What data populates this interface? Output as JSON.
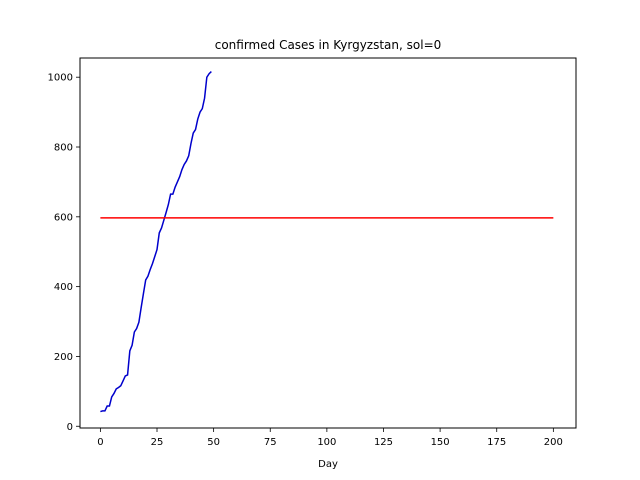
{
  "chart_data": {
    "type": "line",
    "title": "confirmed Cases in Kyrgyzstan, sol=0",
    "xlabel": "Day",
    "ylabel": "",
    "xlim": [
      -9,
      210
    ],
    "ylim": [
      -5,
      1055
    ],
    "xticks": [
      0,
      25,
      50,
      75,
      100,
      125,
      150,
      175,
      200
    ],
    "yticks": [
      0,
      200,
      400,
      600,
      800,
      1000
    ],
    "grid": false,
    "series": [
      {
        "color": "#0000cc",
        "x": [
          0,
          1,
          2,
          3,
          4,
          5,
          6,
          7,
          8,
          9,
          10,
          11,
          12,
          13,
          14,
          15,
          16,
          17,
          18,
          19,
          20,
          21,
          22,
          23,
          24,
          25,
          26,
          27,
          28,
          29,
          30,
          31,
          32,
          33,
          34,
          35,
          36,
          37,
          38,
          39,
          40,
          41,
          42,
          43,
          44,
          45,
          46,
          47,
          48,
          49
        ],
        "y": [
          42,
          44,
          44,
          58,
          58,
          84,
          94,
          107,
          111,
          116,
          130,
          144,
          147,
          216,
          232,
          270,
          280,
          298,
          340,
          380,
          419,
          430,
          449,
          466,
          486,
          506,
          554,
          568,
          590,
          612,
          635,
          665,
          665,
          685,
          700,
          715,
          735,
          750,
          760,
          775,
          810,
          840,
          850,
          880,
          900,
          910,
          940,
          1000,
          1010,
          1016
        ]
      },
      {
        "color": "#ff0000",
        "x": [
          0,
          200
        ],
        "y": [
          597,
          597
        ]
      }
    ]
  }
}
